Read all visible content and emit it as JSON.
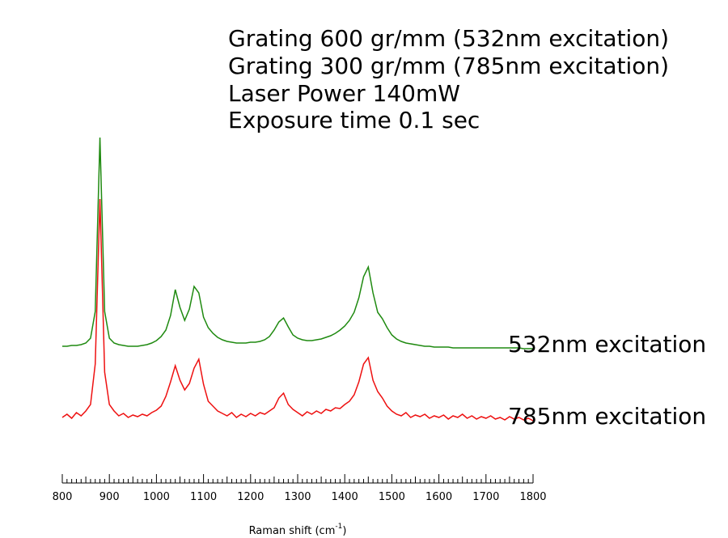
{
  "chart_data": {
    "type": "line",
    "annotations": [
      "Grating 600 gr/mm (532nm excitation)",
      "Grating 300 gr/mm (785nm excitation)",
      "Laser Power 140mW",
      "Exposure time 0.1 sec"
    ],
    "x_label_parts": [
      "Raman shift (cm",
      "-1",
      ")"
    ],
    "xlim": [
      800,
      1800
    ],
    "xticks": [
      800,
      900,
      1000,
      1100,
      1200,
      1300,
      1400,
      1500,
      1600,
      1700,
      1800
    ],
    "xminorticks": [
      810,
      820,
      830,
      840,
      850,
      860,
      870,
      880,
      890,
      910,
      920,
      930,
      940,
      950,
      960,
      970,
      980,
      990,
      1010,
      1020,
      1030,
      1040,
      1050,
      1060,
      1070,
      1080,
      1090,
      1110,
      1120,
      1130,
      1140,
      1150,
      1160,
      1170,
      1180,
      1190,
      1210,
      1220,
      1230,
      1240,
      1250,
      1260,
      1270,
      1280,
      1290,
      1310,
      1320,
      1330,
      1340,
      1350,
      1360,
      1370,
      1380,
      1390,
      1410,
      1420,
      1430,
      1440,
      1450,
      1460,
      1470,
      1480,
      1490,
      1510,
      1520,
      1530,
      1540,
      1550,
      1560,
      1570,
      1580,
      1590,
      1610,
      1620,
      1630,
      1640,
      1650,
      1660,
      1670,
      1680,
      1690,
      1710,
      1720,
      1730,
      1740,
      1750,
      1760,
      1770,
      1780,
      1790
    ],
    "ylim": [
      0,
      440
    ],
    "x": [
      800,
      810,
      820,
      830,
      840,
      850,
      860,
      870,
      880,
      890,
      900,
      910,
      920,
      930,
      940,
      950,
      960,
      970,
      980,
      990,
      1000,
      1010,
      1020,
      1030,
      1040,
      1050,
      1060,
      1070,
      1080,
      1090,
      1100,
      1110,
      1120,
      1130,
      1140,
      1150,
      1160,
      1170,
      1180,
      1190,
      1200,
      1210,
      1220,
      1230,
      1240,
      1250,
      1260,
      1270,
      1280,
      1290,
      1300,
      1310,
      1320,
      1330,
      1340,
      1350,
      1360,
      1370,
      1380,
      1390,
      1400,
      1410,
      1420,
      1430,
      1440,
      1450,
      1460,
      1470,
      1480,
      1490,
      1500,
      1510,
      1520,
      1530,
      1540,
      1550,
      1560,
      1570,
      1580,
      1590,
      1600,
      1610,
      1620,
      1630,
      1640,
      1650,
      1660,
      1670,
      1680,
      1690,
      1700,
      1710,
      1720,
      1730,
      1740,
      1750,
      1760,
      1770,
      1780,
      1790,
      1800
    ],
    "series": [
      {
        "name": "532nm excitation",
        "color": "#1f8a10",
        "values": [
          172,
          172,
          173,
          173,
          174,
          176,
          182,
          215,
          430,
          215,
          182,
          176,
          174,
          173,
          172,
          172,
          172,
          173,
          174,
          176,
          179,
          184,
          192,
          210,
          242,
          220,
          204,
          218,
          246,
          238,
          208,
          195,
          188,
          183,
          180,
          178,
          177,
          176,
          176,
          176,
          177,
          177,
          178,
          180,
          184,
          192,
          202,
          207,
          196,
          186,
          182,
          180,
          179,
          179,
          180,
          181,
          183,
          185,
          188,
          192,
          197,
          204,
          214,
          232,
          258,
          270,
          238,
          214,
          206,
          195,
          186,
          181,
          178,
          176,
          175,
          174,
          173,
          172,
          172,
          171,
          171,
          171,
          171,
          170,
          170,
          170,
          170,
          170,
          170,
          170,
          170,
          170,
          170,
          170,
          170,
          170,
          170,
          170,
          169,
          169,
          169
        ]
      },
      {
        "name": "785nm excitation",
        "color": "#ee1111",
        "values": [
          84,
          88,
          83,
          90,
          86,
          92,
          100,
          150,
          354,
          140,
          100,
          92,
          86,
          89,
          84,
          87,
          85,
          88,
          86,
          90,
          93,
          98,
          110,
          128,
          148,
          130,
          118,
          126,
          145,
          156,
          125,
          104,
          98,
          92,
          89,
          86,
          90,
          84,
          88,
          85,
          89,
          86,
          90,
          88,
          92,
          96,
          108,
          114,
          100,
          94,
          90,
          86,
          91,
          88,
          92,
          89,
          94,
          92,
          96,
          95,
          100,
          104,
          112,
          128,
          150,
          158,
          130,
          116,
          108,
          98,
          92,
          88,
          86,
          90,
          84,
          87,
          85,
          88,
          83,
          86,
          84,
          87,
          82,
          86,
          84,
          88,
          83,
          86,
          82,
          85,
          83,
          86,
          82,
          84,
          81,
          85,
          82,
          84,
          81,
          83,
          80
        ]
      }
    ]
  }
}
